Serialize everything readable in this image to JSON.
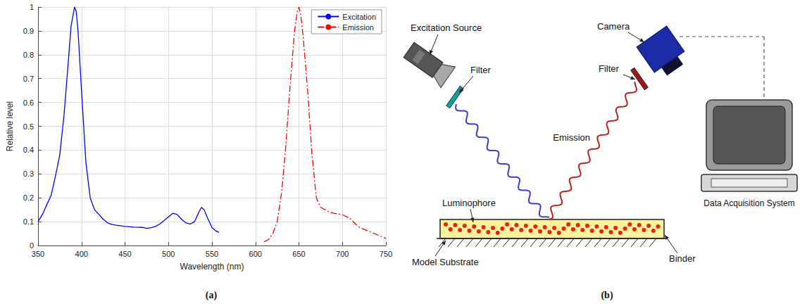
{
  "chart_data": {
    "type": "line",
    "xlabel": "Wavelength (nm)",
    "ylabel": "Relative level",
    "xlim": [
      350,
      750
    ],
    "xticks": [
      350,
      400,
      450,
      500,
      550,
      600,
      650,
      700,
      750
    ],
    "ylim": [
      0,
      1
    ],
    "yticks": [
      0,
      0.1,
      0.2,
      0.3,
      0.4,
      0.5,
      0.6,
      0.7,
      0.8,
      0.9,
      1
    ],
    "grid": true,
    "legend": "upper right",
    "series": [
      {
        "name": "Excitation",
        "color": "#0000ff",
        "line_style": "solid",
        "x": [
          350,
          355,
          360,
          365,
          370,
          375,
          380,
          385,
          388,
          390,
          392,
          394,
          396,
          400,
          405,
          410,
          415,
          420,
          425,
          430,
          435,
          440,
          450,
          460,
          470,
          475,
          480,
          485,
          490,
          495,
          500,
          505,
          510,
          515,
          520,
          525,
          530,
          535,
          538,
          541,
          545,
          550,
          555,
          558
        ],
        "values": [
          0.1,
          0.13,
          0.17,
          0.21,
          0.29,
          0.38,
          0.55,
          0.78,
          0.92,
          0.96,
          1.0,
          0.98,
          0.9,
          0.65,
          0.35,
          0.2,
          0.15,
          0.13,
          0.11,
          0.095,
          0.088,
          0.085,
          0.08,
          0.077,
          0.076,
          0.072,
          0.075,
          0.08,
          0.09,
          0.105,
          0.12,
          0.135,
          0.13,
          0.11,
          0.095,
          0.09,
          0.1,
          0.14,
          0.16,
          0.15,
          0.115,
          0.075,
          0.06,
          0.055
        ]
      },
      {
        "name": "Emission",
        "color": "#ff0000",
        "line_style": "dashdot",
        "x": [
          610,
          615,
          620,
          625,
          630,
          635,
          640,
          645,
          648,
          650,
          652,
          655,
          660,
          665,
          670,
          675,
          680,
          685,
          690,
          700,
          705,
          710,
          715,
          720,
          730,
          740,
          750
        ],
        "values": [
          0.015,
          0.025,
          0.05,
          0.1,
          0.22,
          0.42,
          0.68,
          0.9,
          0.98,
          1.0,
          0.97,
          0.87,
          0.65,
          0.38,
          0.2,
          0.16,
          0.15,
          0.14,
          0.135,
          0.13,
          0.12,
          0.11,
          0.09,
          0.075,
          0.06,
          0.045,
          0.03
        ]
      }
    ]
  },
  "diagram": {
    "excitation_source": "Excitation Source",
    "excitation_filter": "Filter",
    "camera": "Camera",
    "emission_filter": "Filter",
    "emission": "Emission",
    "luminophore": "Luminophore",
    "binder": "Binder",
    "substrate": "Model Substrate",
    "data_acquisition": "Data Acquisition System"
  },
  "panel_labels": {
    "chart": "(a)",
    "diagram": "(b)"
  }
}
